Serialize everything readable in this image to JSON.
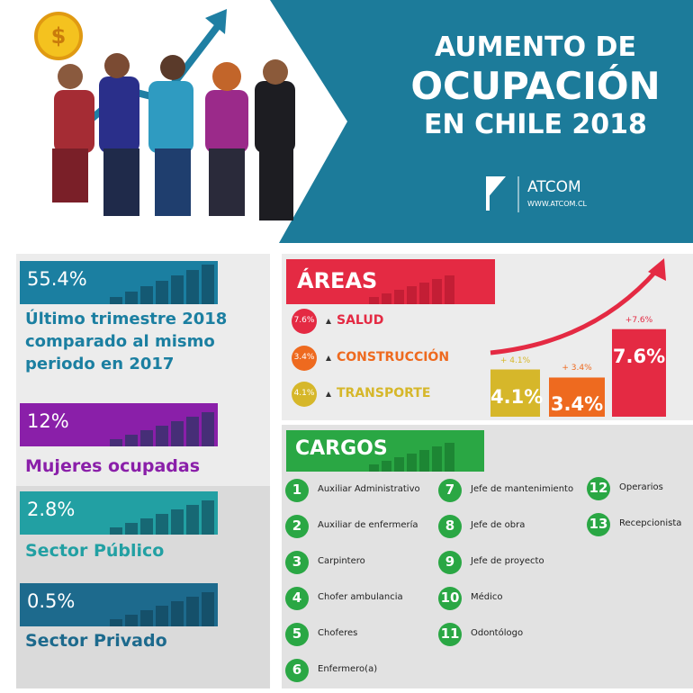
{
  "header": {
    "title_lines": [
      "AUMENTO DE",
      "OCUPACIÓN",
      "EN CHILE 2018"
    ],
    "brand": "ATCOM",
    "url": "WWW.ATCOM.CL"
  },
  "stats": [
    {
      "value": "55.4%",
      "label": "Último trimestre 2018 comparado al mismo periodo en 2017",
      "color": "#1b7fa1"
    },
    {
      "value": "12%",
      "label": "Mujeres ocupadas",
      "color": "#8a1fa9"
    },
    {
      "value": "2.8%",
      "label": "Sector Público",
      "color": "#22a0a3"
    },
    {
      "value": "0.5%",
      "label": "Sector Privado",
      "color": "#1d6a8d"
    }
  ],
  "areas": {
    "title": "ÁREAS",
    "items": [
      {
        "name": "SALUD",
        "badge": "7.6%",
        "value": 7.6,
        "bar_label": "7.6%",
        "change_label": "+7.6%",
        "color": "#e42a43"
      },
      {
        "name": "CONSTRUCCIÓN",
        "badge": "3.4%",
        "value": 3.4,
        "bar_label": "3.4%",
        "change_label": "+ 3.4%",
        "color": "#ee6a1f"
      },
      {
        "name": "TRANSPORTE",
        "badge": "4.1%",
        "value": 4.1,
        "bar_label": "4.1%",
        "change_label": "+ 4.1%",
        "color": "#d6b72a"
      }
    ]
  },
  "cargos": {
    "title": "CARGOS",
    "items": [
      {
        "number": "1",
        "name": "Auxiliar Administrativo"
      },
      {
        "number": "2",
        "name": "Auxiliar de enfermería"
      },
      {
        "number": "3",
        "name": "Carpintero"
      },
      {
        "number": "4",
        "name": "Chofer ambulancia"
      },
      {
        "number": "5",
        "name": "Choferes"
      },
      {
        "number": "6",
        "name": "Enfermero(a)"
      },
      {
        "number": "7",
        "name": "Jefe de mantenimiento"
      },
      {
        "number": "8",
        "name": "Jefe de obra"
      },
      {
        "number": "9",
        "name": "Jefe de proyecto"
      },
      {
        "number": "10",
        "name": "Médico"
      },
      {
        "number": "11",
        "name": "Odontólogo"
      },
      {
        "number": "12",
        "name": "Operarios"
      },
      {
        "number": "13",
        "name": "Recepcionista"
      }
    ]
  }
}
